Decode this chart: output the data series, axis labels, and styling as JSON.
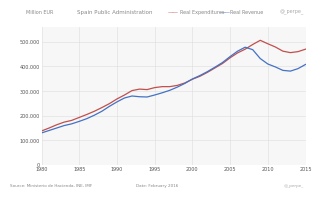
{
  "title": "Spain Public Administration",
  "ylabel": "Million EUR",
  "watermark": "@_perpe_",
  "source_text": "Source: Ministerio de Hacienda, INE, IMF",
  "date_text": "Date: February 2016",
  "legend_expenditure": "Real Expenditures",
  "legend_revenue": "Real Revenue",
  "expenditure_color": "#c0504d",
  "revenue_color": "#4472c4",
  "background_color": "#ffffff",
  "plot_bg_color": "#f7f7f7",
  "grid_color": "#dddddd",
  "years": [
    1980,
    1981,
    1982,
    1983,
    1984,
    1985,
    1986,
    1987,
    1988,
    1989,
    1990,
    1991,
    1992,
    1993,
    1994,
    1995,
    1996,
    1997,
    1998,
    1999,
    2000,
    2001,
    2002,
    2003,
    2004,
    2005,
    2006,
    2007,
    2008,
    2009,
    2010,
    2011,
    2012,
    2013,
    2014,
    2015
  ],
  "expenditure": [
    138000,
    150000,
    163000,
    174000,
    181000,
    193000,
    205000,
    218000,
    233000,
    249000,
    268000,
    284000,
    302000,
    308000,
    306000,
    314000,
    318000,
    318000,
    323000,
    333000,
    348000,
    360000,
    376000,
    394000,
    412000,
    435000,
    455000,
    470000,
    489000,
    506000,
    492000,
    479000,
    462000,
    456000,
    460000,
    470000
  ],
  "revenue": [
    130000,
    140000,
    150000,
    160000,
    167000,
    177000,
    188000,
    202000,
    218000,
    238000,
    256000,
    272000,
    280000,
    277000,
    276000,
    284000,
    293000,
    303000,
    316000,
    331000,
    349000,
    363000,
    379000,
    397000,
    416000,
    440000,
    462000,
    478000,
    468000,
    432000,
    410000,
    398000,
    384000,
    381000,
    391000,
    408000
  ],
  "ylim": [
    0,
    560000
  ],
  "yticks": [
    0,
    100000,
    200000,
    300000,
    400000,
    500000
  ],
  "ytick_labels": [
    "0",
    "100.000",
    "200.000",
    "300.000",
    "400.000",
    "500.000"
  ],
  "xlim": [
    1980,
    2015
  ],
  "xticks": [
    1980,
    1985,
    1990,
    1995,
    2000,
    2005,
    2010,
    2015
  ]
}
